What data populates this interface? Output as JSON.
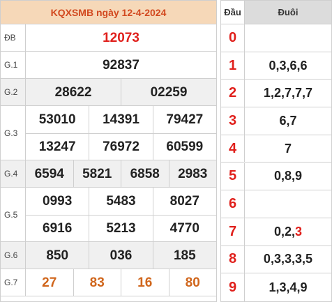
{
  "title": "KQXSMB ngày 12-4-2024",
  "prizes": [
    {
      "label": "ĐB",
      "lines": [
        [
          "12073"
        ]
      ],
      "color": "red",
      "shade": false
    },
    {
      "label": "G.1",
      "lines": [
        [
          "92837"
        ]
      ],
      "color": "normal",
      "shade": false
    },
    {
      "label": "G.2",
      "lines": [
        [
          "28622",
          "02259"
        ]
      ],
      "color": "normal",
      "shade": true
    },
    {
      "label": "G.3",
      "lines": [
        [
          "53010",
          "14391",
          "79427"
        ],
        [
          "13247",
          "76972",
          "60599"
        ]
      ],
      "color": "normal",
      "shade": false
    },
    {
      "label": "G.4",
      "lines": [
        [
          "6594",
          "5821",
          "6858",
          "2983"
        ]
      ],
      "color": "normal",
      "shade": true
    },
    {
      "label": "G.5",
      "lines": [
        [
          "0993",
          "5483",
          "8027"
        ],
        [
          "6916",
          "5213",
          "4770"
        ]
      ],
      "color": "normal",
      "shade": false
    },
    {
      "label": "G.6",
      "lines": [
        [
          "850",
          "036",
          "185"
        ]
      ],
      "color": "normal",
      "shade": true
    },
    {
      "label": "G.7",
      "lines": [
        [
          "27",
          "83",
          "16",
          "80"
        ]
      ],
      "color": "orange",
      "shade": false
    }
  ],
  "loto": {
    "head_dau": "Đầu",
    "head_duoi": "Đuôi",
    "rows": [
      {
        "dau": "0",
        "duoi": [],
        "hl": []
      },
      {
        "dau": "1",
        "duoi": [
          "0",
          "3",
          "6",
          "6"
        ],
        "hl": []
      },
      {
        "dau": "2",
        "duoi": [
          "1",
          "2",
          "7",
          "7",
          "7"
        ],
        "hl": []
      },
      {
        "dau": "3",
        "duoi": [
          "6",
          "7"
        ],
        "hl": []
      },
      {
        "dau": "4",
        "duoi": [
          "7"
        ],
        "hl": []
      },
      {
        "dau": "5",
        "duoi": [
          "0",
          "8",
          "9"
        ],
        "hl": []
      },
      {
        "dau": "6",
        "duoi": [],
        "hl": []
      },
      {
        "dau": "7",
        "duoi": [
          "0",
          "2",
          "3"
        ],
        "hl": [
          2
        ]
      },
      {
        "dau": "8",
        "duoi": [
          "0",
          "3",
          "3",
          "3",
          "5"
        ],
        "hl": []
      },
      {
        "dau": "9",
        "duoi": [
          "1",
          "3",
          "4",
          "9"
        ],
        "hl": []
      }
    ]
  },
  "colors": {
    "header_bg": "#f6d8b8",
    "header_text": "#d2491f",
    "special_prize": "#e0201c",
    "g7_prize": "#d0661c",
    "dau_digit": "#e0201c",
    "shade_row": "#f0f0f0",
    "duoi_header_bg": "#dcdcdc"
  }
}
